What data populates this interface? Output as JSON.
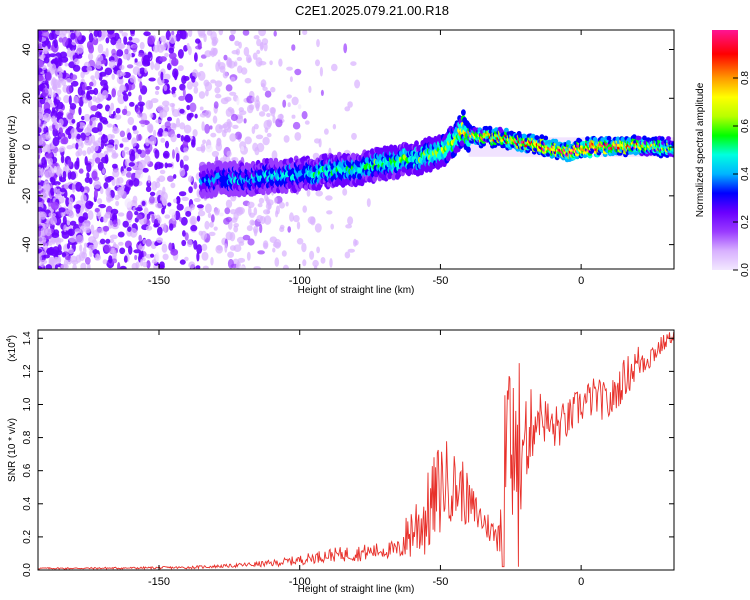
{
  "title": "C2E1.2025.079.21.00.R18",
  "chart_data": [
    {
      "type": "heatmap",
      "title": "C2E1.2025.079.21.00.R18",
      "xlabel": "Height of straight line (km)",
      "ylabel": "Frequency (Hz)",
      "xlim": [
        -193,
        33
      ],
      "ylim": [
        -50,
        48
      ],
      "x_ticks": [
        -150,
        -100,
        -50,
        0
      ],
      "y_ticks": [
        -40,
        -20,
        0,
        20,
        40
      ],
      "colorbar": {
        "label": "Normalized spectral amplitude",
        "range": [
          0,
          1
        ],
        "ticks": [
          0.0,
          0.2,
          0.4,
          0.6,
          0.8
        ],
        "colors": [
          "#f2e8ff",
          "#d8b0ff",
          "#9a3bff",
          "#6a00ff",
          "#0000ff",
          "#00b4ff",
          "#00ffe0",
          "#00ff00",
          "#b8ff00",
          "#ffff00",
          "#ff9900",
          "#ff0000",
          "#ff1493"
        ]
      },
      "ridge": {
        "x": [
          -135,
          -128,
          -120,
          -110,
          -100,
          -90,
          -80,
          -70,
          -60,
          -50,
          -45,
          -42,
          -40,
          -35,
          -30,
          -25,
          -20,
          -15,
          -10,
          -5,
          0,
          5,
          10,
          15,
          20,
          25,
          33
        ],
        "y": [
          -14,
          -13,
          -13,
          -12,
          -11,
          -10,
          -9,
          -7,
          -5,
          -2,
          3,
          8,
          5,
          4,
          4,
          3,
          2,
          1,
          -1,
          -2,
          0,
          0,
          0,
          0,
          1,
          0,
          0
        ],
        "amp": [
          0.35,
          0.4,
          0.4,
          0.45,
          0.45,
          0.5,
          0.5,
          0.55,
          0.55,
          0.6,
          0.65,
          0.7,
          0.7,
          0.75,
          0.8,
          0.8,
          0.85,
          0.85,
          0.9,
          0.9,
          0.95,
          0.95,
          0.9,
          0.85,
          0.8,
          0.7,
          0.6
        ]
      }
    },
    {
      "type": "line",
      "xlabel": "Height of straight line (km)",
      "ylabel": "SNR (10 * v/v)",
      "scale_label": "(x10",
      "scale_exponent": "4",
      "xlim": [
        -193,
        33
      ],
      "ylim": [
        0,
        1.45
      ],
      "x_ticks": [
        -150,
        -100,
        -50,
        0
      ],
      "y_ticks": [
        0.0,
        0.2,
        0.4,
        0.6,
        0.8,
        1.0,
        1.2,
        1.4
      ],
      "series": [
        {
          "color": "#e8302a",
          "x": [
            -193,
            -180,
            -160,
            -140,
            -125,
            -110,
            -100,
            -90,
            -80,
            -70,
            -65,
            -60,
            -55,
            -50,
            -48,
            -45,
            -42,
            -40,
            -35,
            -30,
            -28,
            -26,
            -24,
            -22,
            -20,
            -15,
            -10,
            -5,
            0,
            5,
            10,
            15,
            20,
            25,
            30,
            33
          ],
          "y": [
            0.01,
            0.01,
            0.012,
            0.015,
            0.025,
            0.04,
            0.06,
            0.09,
            0.1,
            0.12,
            0.12,
            0.25,
            0.32,
            0.5,
            0.55,
            0.5,
            0.48,
            0.4,
            0.3,
            0.2,
            0.45,
            0.75,
            0.6,
            0.7,
            0.8,
            0.95,
            0.85,
            0.9,
            1.0,
            1.05,
            1.0,
            1.15,
            1.25,
            1.3,
            1.38,
            1.42
          ],
          "amplitude": [
            0.005,
            0.005,
            0.006,
            0.008,
            0.01,
            0.02,
            0.03,
            0.04,
            0.05,
            0.05,
            0.06,
            0.2,
            0.25,
            0.3,
            0.25,
            0.22,
            0.2,
            0.15,
            0.1,
            0.08,
            0.45,
            0.4,
            0.45,
            0.5,
            0.3,
            0.15,
            0.15,
            0.12,
            0.12,
            0.12,
            0.12,
            0.12,
            0.12,
            0.08,
            0.05,
            0.03
          ]
        }
      ]
    }
  ]
}
